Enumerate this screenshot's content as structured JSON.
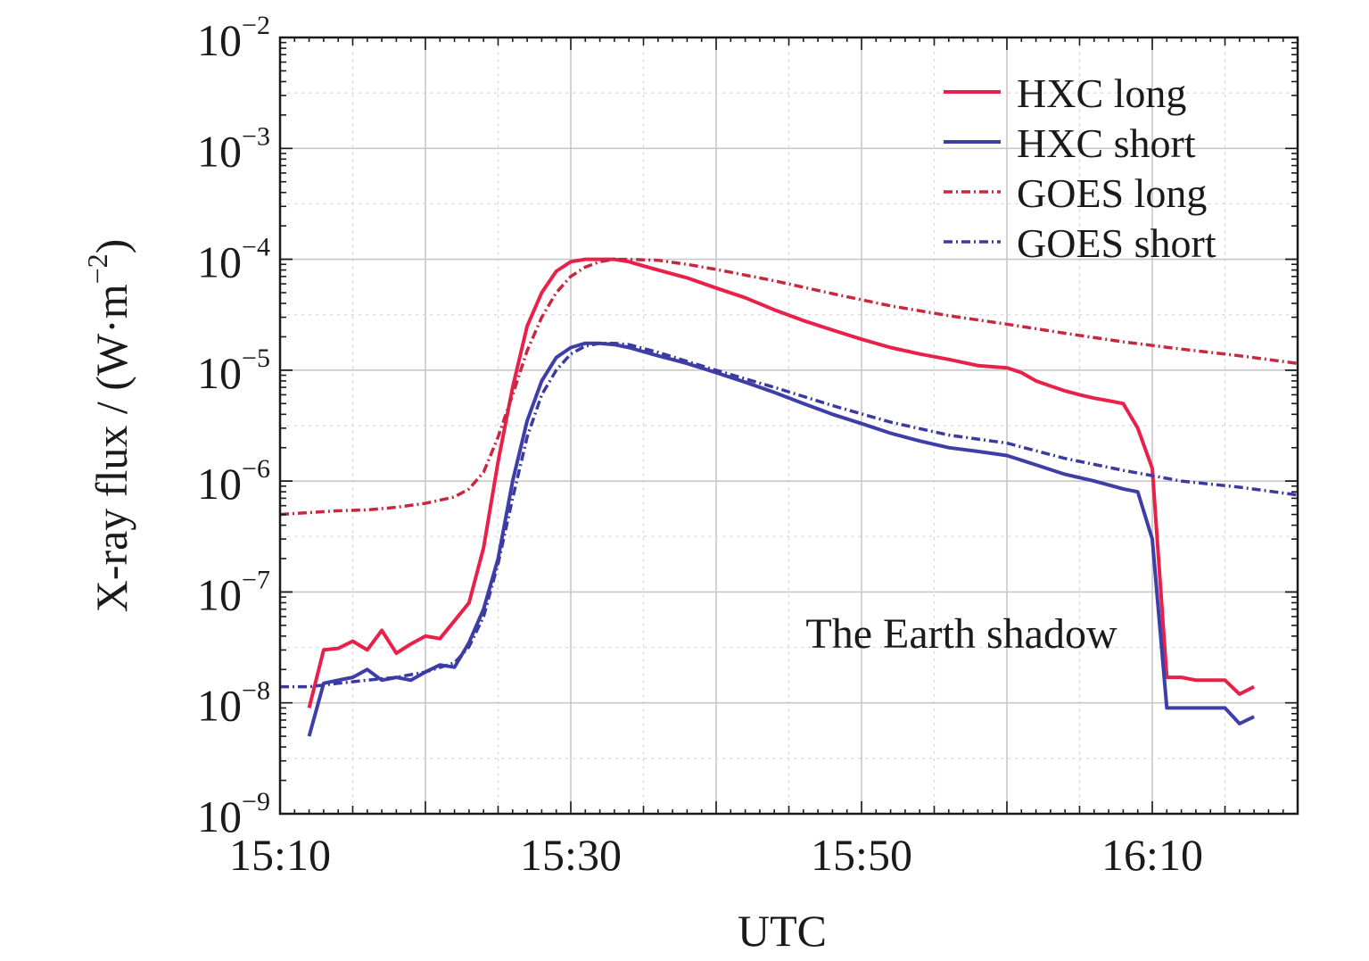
{
  "chart_data": {
    "type": "line",
    "xlabel": "UTC",
    "ylabel": "X-ray flux / (W·m",
    "ylabel_exp": "−2",
    "ylabel_close": ")",
    "y_scale": "log",
    "ylim": [
      1e-09,
      0.01
    ],
    "xlim": [
      "15:10",
      "16:20"
    ],
    "grid": true,
    "legend_position": "top-right",
    "x_ticks": [
      "15:10",
      "15:30",
      "15:50",
      "16:10"
    ],
    "y_ticks": [
      {
        "value": 0.01,
        "base": "10",
        "exp": "−2"
      },
      {
        "value": 0.001,
        "base": "10",
        "exp": "−3"
      },
      {
        "value": 0.0001,
        "base": "10",
        "exp": "−4"
      },
      {
        "value": 1e-05,
        "base": "10",
        "exp": "−5"
      },
      {
        "value": 1e-06,
        "base": "10",
        "exp": "−6"
      },
      {
        "value": 1e-07,
        "base": "10",
        "exp": "−7"
      },
      {
        "value": 1e-08,
        "base": "10",
        "exp": "−8"
      },
      {
        "value": 1e-09,
        "base": "10",
        "exp": "−9"
      }
    ],
    "annotation": "The Earth shadow",
    "series": [
      {
        "name": "HXC long",
        "color": "#e8204a",
        "style": "solid",
        "x": [
          "15:12",
          "15:13",
          "15:14",
          "15:15",
          "15:16",
          "15:17",
          "15:18",
          "15:19",
          "15:20",
          "15:21",
          "15:22",
          "15:23",
          "15:24",
          "15:25",
          "15:26",
          "15:27",
          "15:28",
          "15:29",
          "15:30",
          "15:31",
          "15:32",
          "15:33",
          "15:34",
          "15:35",
          "15:36",
          "15:38",
          "15:40",
          "15:42",
          "15:44",
          "15:46",
          "15:48",
          "15:50",
          "15:52",
          "15:54",
          "15:56",
          "15:58",
          "16:00",
          "16:01",
          "16:02",
          "16:03",
          "16:04",
          "16:05",
          "16:06",
          "16:07",
          "16:08",
          "16:09",
          "16:10",
          "16:11",
          "16:12",
          "16:13",
          "16:14",
          "16:15",
          "16:16",
          "16:17"
        ],
        "y": [
          9e-09,
          3e-08,
          3.1e-08,
          3.6e-08,
          3e-08,
          4.5e-08,
          2.8e-08,
          3.4e-08,
          4e-08,
          3.8e-08,
          5.5e-08,
          8e-08,
          2.5e-07,
          1.5e-06,
          7e-06,
          2.5e-05,
          5e-05,
          7.8e-05,
          9.5e-05,
          0.0001,
          0.0001,
          0.0001,
          9.5e-05,
          8.7e-05,
          8e-05,
          6.8e-05,
          5.5e-05,
          4.5e-05,
          3.5e-05,
          2.8e-05,
          2.3e-05,
          1.9e-05,
          1.6e-05,
          1.4e-05,
          1.25e-05,
          1.1e-05,
          1.05e-05,
          9.5e-06,
          8e-06,
          7.2e-06,
          6.5e-06,
          6e-06,
          5.6e-06,
          5.3e-06,
          5e-06,
          3e-06,
          1.3e-06,
          1.7e-08,
          1.7e-08,
          1.6e-08,
          1.6e-08,
          1.6e-08,
          1.2e-08,
          1.4e-08
        ]
      },
      {
        "name": "HXC short",
        "color": "#3d3ea8",
        "style": "solid",
        "x": [
          "15:12",
          "15:13",
          "15:14",
          "15:15",
          "15:16",
          "15:17",
          "15:18",
          "15:19",
          "15:20",
          "15:21",
          "15:22",
          "15:23",
          "15:24",
          "15:25",
          "15:26",
          "15:27",
          "15:28",
          "15:29",
          "15:30",
          "15:31",
          "15:32",
          "15:33",
          "15:34",
          "15:36",
          "15:38",
          "15:40",
          "15:42",
          "15:44",
          "15:46",
          "15:48",
          "15:50",
          "15:52",
          "15:54",
          "15:56",
          "15:58",
          "16:00",
          "16:02",
          "16:04",
          "16:06",
          "16:08",
          "16:09",
          "16:10",
          "16:11",
          "16:12",
          "16:13",
          "16:14",
          "16:15",
          "16:16",
          "16:17"
        ],
        "y": [
          5e-09,
          1.5e-08,
          1.6e-08,
          1.7e-08,
          2e-08,
          1.6e-08,
          1.7e-08,
          1.6e-08,
          1.9e-08,
          2.2e-08,
          2.1e-08,
          3.5e-08,
          7e-08,
          2e-07,
          1e-06,
          3.5e-06,
          8e-06,
          1.3e-05,
          1.6e-05,
          1.75e-05,
          1.75e-05,
          1.7e-05,
          1.6e-05,
          1.35e-05,
          1.15e-05,
          9.5e-06,
          7.8e-06,
          6.3e-06,
          5e-06,
          4e-06,
          3.3e-06,
          2.7e-06,
          2.3e-06,
          2e-06,
          1.85e-06,
          1.7e-06,
          1.4e-06,
          1.15e-06,
          1e-06,
          8.5e-07,
          8e-07,
          3e-07,
          9e-09,
          9e-09,
          9e-09,
          9e-09,
          9e-09,
          6.5e-09,
          7.5e-09
        ]
      },
      {
        "name": "GOES long",
        "color": "#c8283e",
        "style": "dashdot",
        "x": [
          "15:10",
          "15:12",
          "15:14",
          "15:16",
          "15:18",
          "15:20",
          "15:22",
          "15:23",
          "15:24",
          "15:25",
          "15:26",
          "15:27",
          "15:28",
          "15:29",
          "15:30",
          "15:31",
          "15:32",
          "15:33",
          "15:34",
          "15:36",
          "15:38",
          "15:40",
          "15:44",
          "15:48",
          "15:52",
          "15:56",
          "16:00",
          "16:04",
          "16:08",
          "16:12",
          "16:16",
          "16:20"
        ],
        "y": [
          5e-07,
          5.2e-07,
          5.4e-07,
          5.5e-07,
          5.8e-07,
          6.3e-07,
          7.2e-07,
          8.5e-07,
          1.2e-06,
          2.5e-06,
          6e-06,
          1.5e-05,
          3e-05,
          5e-05,
          7e-05,
          8.5e-05,
          9.5e-05,
          0.0001,
          0.0001,
          9.8e-05,
          9e-05,
          8.1e-05,
          6.4e-05,
          4.9e-05,
          3.8e-05,
          3.1e-05,
          2.6e-05,
          2.15e-05,
          1.8e-05,
          1.55e-05,
          1.35e-05,
          1.15e-05
        ]
      },
      {
        "name": "GOES short",
        "color": "#3b3a9e",
        "style": "dashdot",
        "x": [
          "15:10",
          "15:12",
          "15:14",
          "15:16",
          "15:18",
          "15:20",
          "15:22",
          "15:23",
          "15:24",
          "15:25",
          "15:26",
          "15:27",
          "15:28",
          "15:29",
          "15:30",
          "15:31",
          "15:32",
          "15:33",
          "15:34",
          "15:36",
          "15:38",
          "15:40",
          "15:44",
          "15:48",
          "15:52",
          "15:56",
          "16:00",
          "16:04",
          "16:08",
          "16:12",
          "16:16",
          "16:20"
        ],
        "y": [
          1.4e-08,
          1.4e-08,
          1.5e-08,
          1.6e-08,
          1.7e-08,
          1.9e-08,
          2.3e-08,
          3.2e-08,
          6e-08,
          1.8e-07,
          7e-07,
          2.5e-06,
          6e-06,
          1e-05,
          1.4e-05,
          1.65e-05,
          1.75e-05,
          1.75e-05,
          1.7e-05,
          1.45e-05,
          1.2e-05,
          1e-05,
          7e-06,
          4.8e-06,
          3.4e-06,
          2.6e-06,
          2.2e-06,
          1.6e-06,
          1.25e-06,
          1e-06,
          8.8e-07,
          7.5e-07
        ]
      }
    ]
  }
}
